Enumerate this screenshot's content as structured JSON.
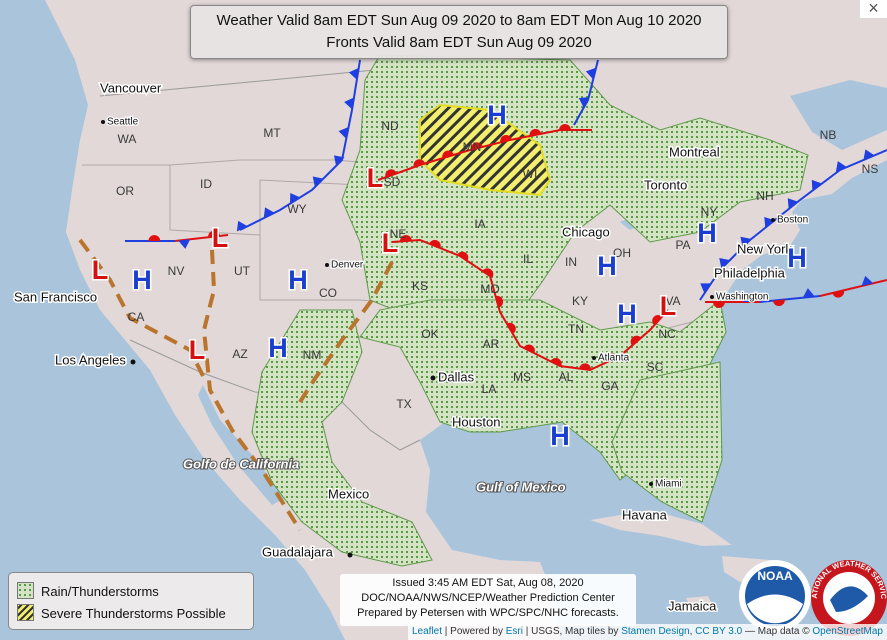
{
  "header": {
    "line1": "Weather Valid 8am EDT Sun Aug 09 2020 to 8am EDT Mon Aug 10 2020",
    "line2": "Fronts Valid 8am EDT Sun Aug 09 2020"
  },
  "close": "×",
  "pressure": {
    "high": "H",
    "low": "L"
  },
  "states": [
    "WA",
    "OR",
    "ID",
    "MT",
    "WY",
    "ND",
    "SD",
    "MN",
    "WI",
    "NE",
    "IA",
    "CA",
    "NV",
    "UT",
    "CO",
    "KS",
    "MO",
    "IL",
    "IN",
    "OH",
    "KY",
    "TN",
    "AR",
    "OK",
    "TX",
    "NM",
    "AZ",
    "LA",
    "MS",
    "AL",
    "GA",
    "SC",
    "NC",
    "VA",
    "PA",
    "NY",
    "NB",
    "NS",
    "NH"
  ],
  "cities": [
    "Vancouver",
    "San Francisco",
    "Los Angeles",
    "Dallas",
    "Houston",
    "Chicago",
    "Philadelphia",
    "New York",
    "Toronto",
    "Montreal",
    "Mexico",
    "Guadalajara",
    "Havana",
    "Jamaica"
  ],
  "small_cities": [
    "Seattle",
    "Denver",
    "Boston",
    "Washington",
    "Atlanta",
    "Miami"
  ],
  "water_labels": [
    "Golfo de California",
    "Gulf of Mexico"
  ],
  "legend": {
    "items": [
      "Rain/Thunderstorms",
      "Severe Thunderstorms Possible"
    ]
  },
  "issued": {
    "lines": [
      "Issued 3:45 AM EDT Sat, Aug 08, 2020",
      "DOC/NOAA/NWS/NCEP/Weather Prediction Center",
      "Prepared by Petersen with WPC/SPC/NHC forecasts."
    ]
  },
  "logos": {
    "noaa": "NOAA",
    "nws": "NATIONAL WEATHER SERVICE"
  },
  "attribution": {
    "leaflet": "Leaflet",
    "powered": "| Powered by",
    "esri": "Esri",
    "usgs": "| USGS, Map tiles by",
    "stamen": "Stamen Design",
    "sep": ",",
    "cc": "CC BY 3.0",
    "osm_prefix": "— Map data ©",
    "osm": "OpenStreetMap"
  }
}
